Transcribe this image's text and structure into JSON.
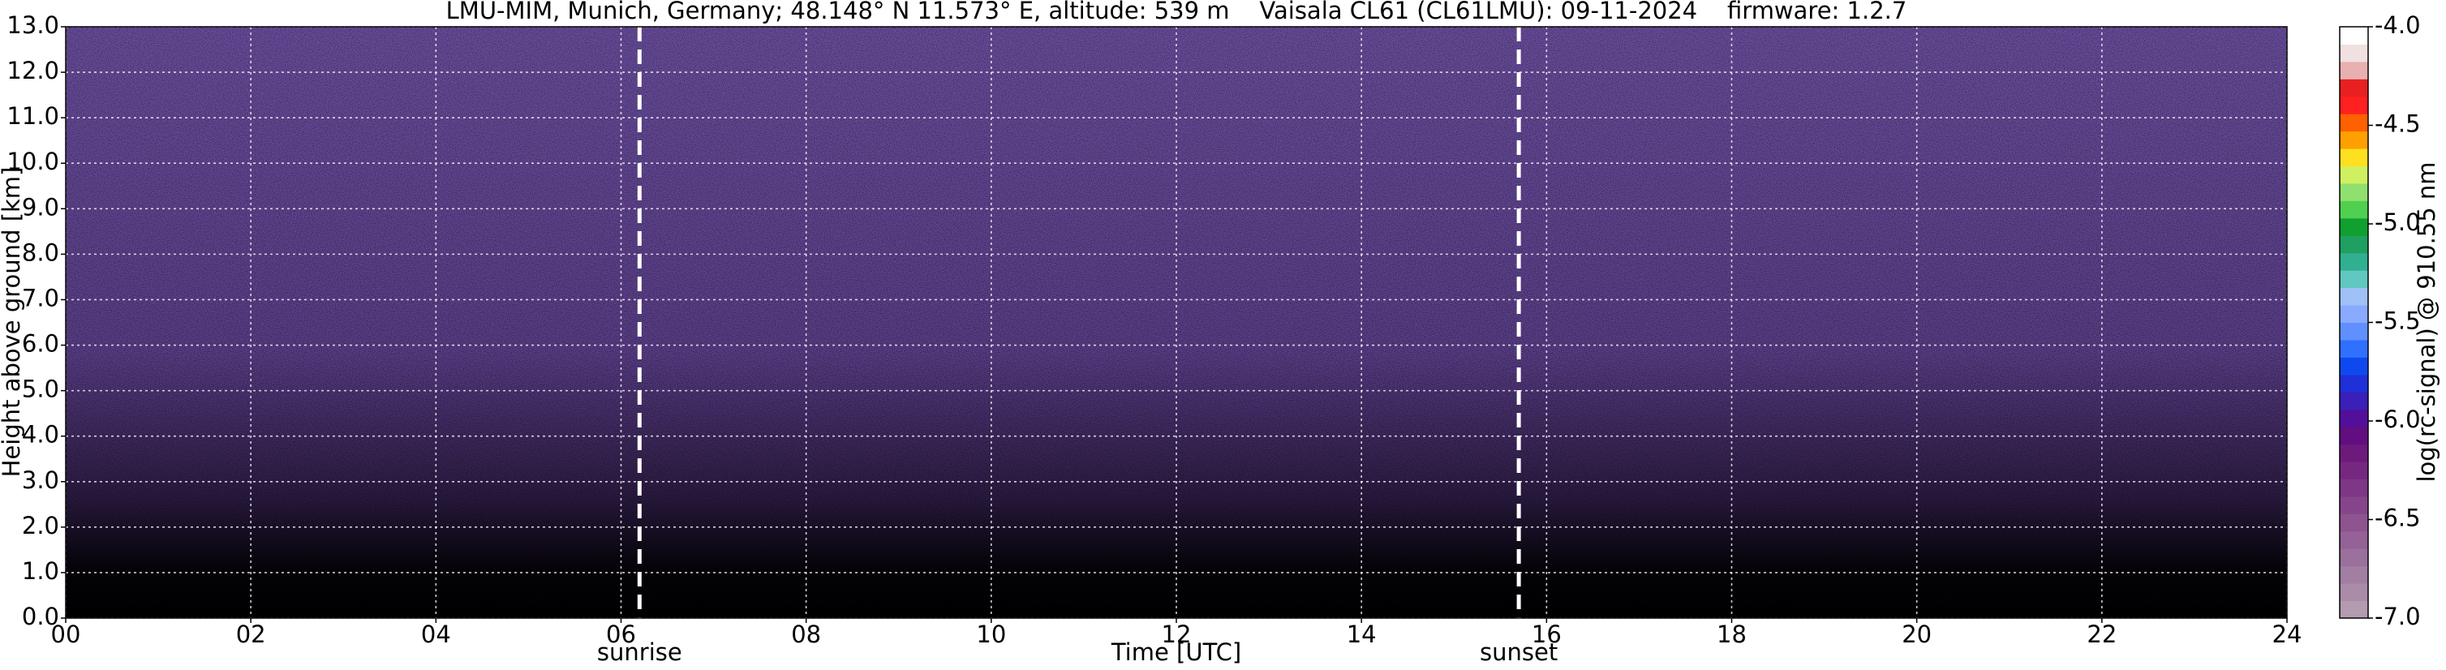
{
  "chart_data": {
    "type": "heatmap",
    "title": "LMU-MIM, Munich, Germany; 48.148° N 11.573° E, altitude: 539 m    Vaisala CL61 (CL61LMU): 09-11-2024    firmware: 1.2.7",
    "xlabel": "Time [UTC]",
    "ylabel": "Height above ground [km]",
    "colorbar_label": "log(rc-signal) @ 910.55 nm",
    "xlim": [
      0,
      24
    ],
    "xticks": [
      {
        "value": 0,
        "label": "00"
      },
      {
        "value": 2,
        "label": "02"
      },
      {
        "value": 4,
        "label": "04"
      },
      {
        "value": 6,
        "label": "06"
      },
      {
        "value": 8,
        "label": "08"
      },
      {
        "value": 10,
        "label": "10"
      },
      {
        "value": 12,
        "label": "12"
      },
      {
        "value": 14,
        "label": "14"
      },
      {
        "value": 16,
        "label": "16"
      },
      {
        "value": 18,
        "label": "18"
      },
      {
        "value": 20,
        "label": "20"
      },
      {
        "value": 22,
        "label": "22"
      },
      {
        "value": 24,
        "label": "24"
      }
    ],
    "ylim": [
      0,
      13
    ],
    "yticks": [
      {
        "value": 0,
        "label": "0.0"
      },
      {
        "value": 1,
        "label": "1.0"
      },
      {
        "value": 2,
        "label": "2.0"
      },
      {
        "value": 3,
        "label": "3.0"
      },
      {
        "value": 4,
        "label": "4.0"
      },
      {
        "value": 5,
        "label": "5.0"
      },
      {
        "value": 6,
        "label": "6.0"
      },
      {
        "value": 7,
        "label": "7.0"
      },
      {
        "value": 8,
        "label": "8.0"
      },
      {
        "value": 9,
        "label": "9.0"
      },
      {
        "value": 10,
        "label": "10.0"
      },
      {
        "value": 11,
        "label": "11.0"
      },
      {
        "value": 12,
        "label": "12.0"
      },
      {
        "value": 13,
        "label": "13.0"
      }
    ],
    "grid": true,
    "clim": [
      -7,
      -4
    ],
    "cticks": [
      {
        "value": -7,
        "label": "-7.0"
      },
      {
        "value": -6.5,
        "label": "-6.5"
      },
      {
        "value": -6,
        "label": "-6.0"
      },
      {
        "value": -5.5,
        "label": "-5.5"
      },
      {
        "value": -5,
        "label": "-5.0"
      },
      {
        "value": -4.5,
        "label": "-4.5"
      },
      {
        "value": -4,
        "label": "-4.0"
      }
    ],
    "colorscale": [
      "#b39bb0",
      "#aa8ca8",
      "#a27ea2",
      "#9b709c",
      "#946296",
      "#8d5490",
      "#86458b",
      "#7e3686",
      "#762880",
      "#6e1a7c",
      "#620e80",
      "#52109a",
      "#3a20b8",
      "#2030d8",
      "#1048f0",
      "#3070ff",
      "#6090ff",
      "#88aaff",
      "#a0c0f8",
      "#60c8c0",
      "#30b090",
      "#20a060",
      "#10a030",
      "#50d050",
      "#90e070",
      "#d0f060",
      "#ffe020",
      "#ffa000",
      "#ff6000",
      "#ff2020",
      "#e82020",
      "#e8b0b0",
      "#f0e0e0",
      "#ffffff"
    ],
    "annotations": [
      {
        "text": "sunrise",
        "x": 6.2
      },
      {
        "text": "sunset",
        "x": 15.7
      }
    ]
  }
}
